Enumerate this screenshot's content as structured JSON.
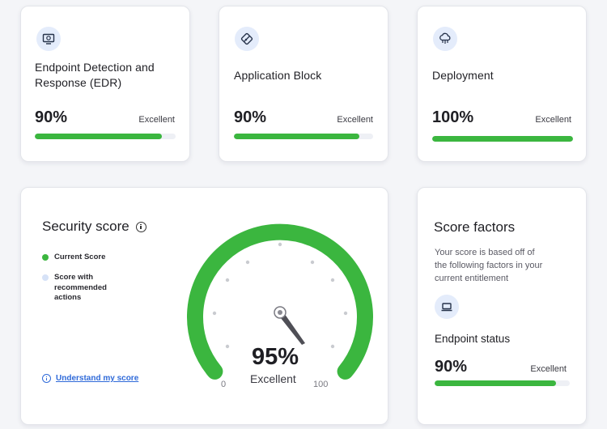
{
  "cards": [
    {
      "title_line1": "Endpoint Detection and",
      "title_line2": "Response (EDR)",
      "percent_label": "90%",
      "percent": 90,
      "rating": "Excellent",
      "icon": "monitor-target-icon"
    },
    {
      "title": "Application Block",
      "percent_label": "90%",
      "percent": 90,
      "rating": "Excellent",
      "icon": "app-block-icon"
    },
    {
      "title": "Deployment",
      "percent_label": "100%",
      "percent": 100,
      "rating": "Excellent",
      "icon": "cloud-deploy-icon"
    }
  ],
  "security_score": {
    "title": "Security score",
    "info_icon": "info-icon",
    "legend": [
      {
        "label": "Current Score",
        "color": "#3bb63f"
      },
      {
        "label_line1": "Score with",
        "label_line2": "recommended",
        "label_line3": "actions",
        "color": "#d6e2f7"
      }
    ],
    "link": "Understand my score",
    "score_label": "95%",
    "score": 95,
    "rating": "Excellent",
    "min_label": "0",
    "max_label": "100",
    "gauge_color": "#3bb63f"
  },
  "score_factors": {
    "title": "Score factors",
    "description_line1": "Your score is based off of",
    "description_line2": "the following factors in your",
    "description_line3": "current entitlement",
    "icon": "laptop-icon",
    "item_title": "Endpoint status",
    "percent_label": "90%",
    "percent": 90,
    "rating": "Excellent"
  }
}
